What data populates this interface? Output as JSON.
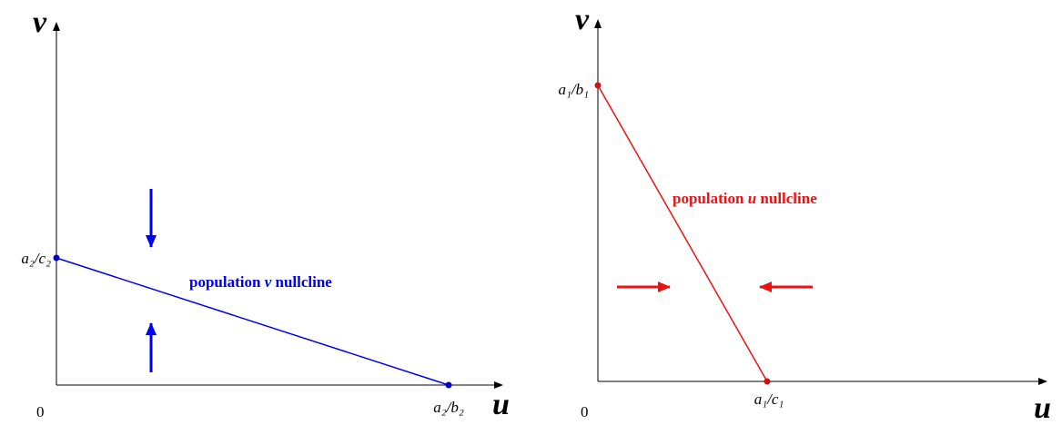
{
  "panels": [
    {
      "y_axis_label": "v",
      "x_axis_label": "u",
      "origin_label": "0",
      "y_intercept_label": "a₂/c₂",
      "x_intercept_label": "a₂/b₂",
      "nullcline_label": {
        "before": "population",
        "variable": "v",
        "after": "nullcline"
      }
    },
    {
      "y_axis_label": "v",
      "x_axis_label": "u",
      "origin_label": "0",
      "y_intercept_label": "a₁/b₁",
      "x_intercept_label": "a₁/c₁",
      "nullcline_label": {
        "before": "population",
        "variable": "u",
        "after": "nullcline"
      }
    }
  ]
}
